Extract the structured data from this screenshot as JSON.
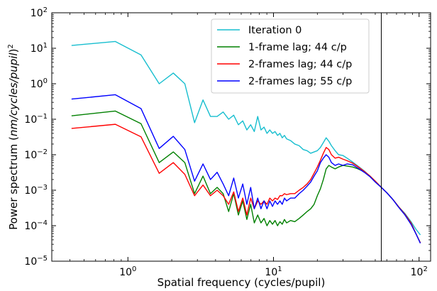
{
  "chart_data": {
    "type": "line",
    "xlabel": "Spatial frequency (cycles/pupil)",
    "ylabel_prefix": "Power spectrum (",
    "ylabel_italic": "nm/cycles/pupil",
    "ylabel_suffix": ")",
    "ylabel_exponent": "2",
    "x_scale": "log",
    "y_scale": "log",
    "xlim": [
      0.3,
      120
    ],
    "ylim": [
      1e-05,
      100
    ],
    "x_major_ticks": [
      {
        "value": 1,
        "base": "10",
        "exp": "0"
      },
      {
        "value": 10,
        "base": "10",
        "exp": "1"
      },
      {
        "value": 100,
        "base": "10",
        "exp": "2"
      }
    ],
    "y_major_ticks": [
      {
        "value": 1e-05,
        "base": "10",
        "exp": "−5"
      },
      {
        "value": 0.0001,
        "base": "10",
        "exp": "−4"
      },
      {
        "value": 0.001,
        "base": "10",
        "exp": "−3"
      },
      {
        "value": 0.01,
        "base": "10",
        "exp": "−2"
      },
      {
        "value": 0.1,
        "base": "10",
        "exp": "−1"
      },
      {
        "value": 1,
        "base": "10",
        "exp": "0"
      },
      {
        "value": 10,
        "base": "10",
        "exp": "1"
      },
      {
        "value": 100,
        "base": "10",
        "exp": "2"
      }
    ],
    "vertical_line_x": 55,
    "grid": false,
    "legend_position": "top-center",
    "series": [
      {
        "name": "Iteration 0",
        "color": "#17becf",
        "points": [
          [
            0.41,
            12
          ],
          [
            0.82,
            15.5
          ],
          [
            1.23,
            6.5
          ],
          [
            1.64,
            1.0
          ],
          [
            2.05,
            2.0
          ],
          [
            2.46,
            1.0
          ],
          [
            2.87,
            0.08
          ],
          [
            3.28,
            0.35
          ],
          [
            3.69,
            0.12
          ],
          [
            4.1,
            0.12
          ],
          [
            4.51,
            0.16
          ],
          [
            4.92,
            0.1
          ],
          [
            5.33,
            0.13
          ],
          [
            5.74,
            0.07
          ],
          [
            6.15,
            0.09
          ],
          [
            6.56,
            0.05
          ],
          [
            6.97,
            0.07
          ],
          [
            7.38,
            0.045
          ],
          [
            7.79,
            0.12
          ],
          [
            8.2,
            0.05
          ],
          [
            8.61,
            0.06
          ],
          [
            9.02,
            0.04
          ],
          [
            9.43,
            0.05
          ],
          [
            9.84,
            0.04
          ],
          [
            10.25,
            0.045
          ],
          [
            10.66,
            0.035
          ],
          [
            11.07,
            0.04
          ],
          [
            11.48,
            0.03
          ],
          [
            11.89,
            0.035
          ],
          [
            12.3,
            0.028
          ],
          [
            13.1,
            0.025
          ],
          [
            14.0,
            0.02
          ],
          [
            15.0,
            0.018
          ],
          [
            16.0,
            0.014
          ],
          [
            17.0,
            0.013
          ],
          [
            18.0,
            0.011
          ],
          [
            19.0,
            0.012
          ],
          [
            20.0,
            0.013
          ],
          [
            21.0,
            0.016
          ],
          [
            22.0,
            0.022
          ],
          [
            23.0,
            0.03
          ],
          [
            24.0,
            0.024
          ],
          [
            25.0,
            0.018
          ],
          [
            26.5,
            0.013
          ],
          [
            28.0,
            0.01
          ],
          [
            30.0,
            0.0095
          ],
          [
            32.0,
            0.008
          ],
          [
            35.0,
            0.0062
          ],
          [
            38.0,
            0.0048
          ],
          [
            42.0,
            0.0035
          ],
          [
            46.0,
            0.0025
          ],
          [
            50.0,
            0.0018
          ],
          [
            55.0,
            0.0012
          ],
          [
            60.0,
            0.00085
          ],
          [
            66.0,
            0.00055
          ],
          [
            72.0,
            0.00035
          ],
          [
            80.0,
            0.00022
          ],
          [
            88.0,
            0.00013
          ],
          [
            95.0,
            8e-05
          ],
          [
            102,
            5.5e-05
          ]
        ]
      },
      {
        "name": "1-frame lag; 44 c/p",
        "color": "#008000",
        "points": [
          [
            0.41,
            0.125
          ],
          [
            0.82,
            0.17
          ],
          [
            1.23,
            0.075
          ],
          [
            1.64,
            0.006
          ],
          [
            2.05,
            0.012
          ],
          [
            2.46,
            0.006
          ],
          [
            2.87,
            0.0008
          ],
          [
            3.28,
            0.0025
          ],
          [
            3.69,
            0.0008
          ],
          [
            4.1,
            0.0012
          ],
          [
            4.51,
            0.0008
          ],
          [
            4.92,
            0.00025
          ],
          [
            5.33,
            0.0008
          ],
          [
            5.74,
            0.0002
          ],
          [
            6.15,
            0.0005
          ],
          [
            6.56,
            0.00015
          ],
          [
            6.97,
            0.0004
          ],
          [
            7.38,
            0.00012
          ],
          [
            7.79,
            0.0002
          ],
          [
            8.2,
            0.00012
          ],
          [
            8.61,
            0.00016
          ],
          [
            9.02,
            0.0001
          ],
          [
            9.43,
            0.00014
          ],
          [
            9.84,
            0.00011
          ],
          [
            10.25,
            0.00014
          ],
          [
            10.66,
            0.0001
          ],
          [
            11.07,
            0.00013
          ],
          [
            11.48,
            0.00011
          ],
          [
            11.89,
            0.00015
          ],
          [
            12.3,
            0.00012
          ],
          [
            13.1,
            0.00014
          ],
          [
            14.0,
            0.00013
          ],
          [
            15.0,
            0.00016
          ],
          [
            16.0,
            0.0002
          ],
          [
            17.0,
            0.00025
          ],
          [
            18.0,
            0.0003
          ],
          [
            19.0,
            0.0004
          ],
          [
            20.0,
            0.0007
          ],
          [
            21.0,
            0.0011
          ],
          [
            22.0,
            0.002
          ],
          [
            23.0,
            0.004
          ],
          [
            24.0,
            0.005
          ],
          [
            25.0,
            0.0045
          ],
          [
            26.5,
            0.004
          ],
          [
            28.0,
            0.0045
          ],
          [
            30.0,
            0.005
          ],
          [
            32.0,
            0.0048
          ],
          [
            35.0,
            0.0045
          ],
          [
            38.0,
            0.004
          ],
          [
            42.0,
            0.0033
          ],
          [
            46.0,
            0.0025
          ],
          [
            50.0,
            0.0018
          ],
          [
            55.0,
            0.0012
          ],
          [
            60.0,
            0.00085
          ],
          [
            66.0,
            0.00055
          ],
          [
            72.0,
            0.00035
          ],
          [
            80.0,
            0.00021
          ],
          [
            88.0,
            0.00012
          ],
          [
            95.0,
            6e-05
          ],
          [
            102,
            3.3e-05
          ]
        ]
      },
      {
        "name": "2-frames lag; 44 c/p",
        "color": "#ff0000",
        "points": [
          [
            0.41,
            0.055
          ],
          [
            0.82,
            0.072
          ],
          [
            1.23,
            0.032
          ],
          [
            1.64,
            0.003
          ],
          [
            2.05,
            0.006
          ],
          [
            2.46,
            0.0028
          ],
          [
            2.87,
            0.0007
          ],
          [
            3.28,
            0.0014
          ],
          [
            3.69,
            0.0007
          ],
          [
            4.1,
            0.001
          ],
          [
            4.51,
            0.0007
          ],
          [
            4.92,
            0.0004
          ],
          [
            5.33,
            0.0009
          ],
          [
            5.74,
            0.00025
          ],
          [
            6.15,
            0.0006
          ],
          [
            6.56,
            0.0002
          ],
          [
            6.97,
            0.0006
          ],
          [
            7.38,
            0.0003
          ],
          [
            7.79,
            0.0005
          ],
          [
            8.2,
            0.0004
          ],
          [
            8.61,
            0.0005
          ],
          [
            9.02,
            0.0004
          ],
          [
            9.43,
            0.0006
          ],
          [
            9.84,
            0.0005
          ],
          [
            10.25,
            0.0006
          ],
          [
            10.66,
            0.00055
          ],
          [
            11.07,
            0.0007
          ],
          [
            11.48,
            0.0007
          ],
          [
            11.89,
            0.0008
          ],
          [
            12.3,
            0.00075
          ],
          [
            13.1,
            0.0008
          ],
          [
            14.0,
            0.0008
          ],
          [
            15.0,
            0.001
          ],
          [
            16.0,
            0.0012
          ],
          [
            17.0,
            0.0015
          ],
          [
            18.0,
            0.002
          ],
          [
            19.0,
            0.003
          ],
          [
            20.0,
            0.0045
          ],
          [
            21.0,
            0.007
          ],
          [
            22.0,
            0.011
          ],
          [
            23.0,
            0.016
          ],
          [
            24.0,
            0.014
          ],
          [
            25.0,
            0.01
          ],
          [
            26.5,
            0.008
          ],
          [
            28.0,
            0.0085
          ],
          [
            30.0,
            0.0075
          ],
          [
            32.0,
            0.0068
          ],
          [
            35.0,
            0.0058
          ],
          [
            38.0,
            0.0046
          ],
          [
            42.0,
            0.0034
          ],
          [
            46.0,
            0.0025
          ],
          [
            50.0,
            0.0018
          ],
          [
            55.0,
            0.0012
          ],
          [
            60.0,
            0.00085
          ],
          [
            66.0,
            0.00055
          ],
          [
            72.0,
            0.00035
          ],
          [
            80.0,
            0.00021
          ],
          [
            88.0,
            0.00012
          ],
          [
            95.0,
            6e-05
          ],
          [
            102,
            3.3e-05
          ]
        ]
      },
      {
        "name": "2-frames lag; 55 c/p",
        "color": "#0000ff",
        "points": [
          [
            0.41,
            0.37
          ],
          [
            0.82,
            0.49
          ],
          [
            1.23,
            0.2
          ],
          [
            1.64,
            0.015
          ],
          [
            2.05,
            0.033
          ],
          [
            2.46,
            0.014
          ],
          [
            2.87,
            0.0018
          ],
          [
            3.28,
            0.0055
          ],
          [
            3.69,
            0.002
          ],
          [
            4.1,
            0.0032
          ],
          [
            4.51,
            0.0015
          ],
          [
            4.92,
            0.0007
          ],
          [
            5.33,
            0.0022
          ],
          [
            5.74,
            0.0006
          ],
          [
            6.15,
            0.0015
          ],
          [
            6.56,
            0.0004
          ],
          [
            6.97,
            0.0012
          ],
          [
            7.38,
            0.0003
          ],
          [
            7.79,
            0.0006
          ],
          [
            8.2,
            0.0003
          ],
          [
            8.61,
            0.0005
          ],
          [
            9.02,
            0.0003
          ],
          [
            9.43,
            0.0005
          ],
          [
            9.84,
            0.00035
          ],
          [
            10.25,
            0.0005
          ],
          [
            10.66,
            0.0004
          ],
          [
            11.07,
            0.0005
          ],
          [
            11.48,
            0.0004
          ],
          [
            11.89,
            0.0006
          ],
          [
            12.3,
            0.0005
          ],
          [
            13.1,
            0.0006
          ],
          [
            14.0,
            0.0006
          ],
          [
            15.0,
            0.0008
          ],
          [
            16.0,
            0.001
          ],
          [
            17.0,
            0.0013
          ],
          [
            18.0,
            0.0017
          ],
          [
            19.0,
            0.0025
          ],
          [
            20.0,
            0.0035
          ],
          [
            21.0,
            0.006
          ],
          [
            22.0,
            0.008
          ],
          [
            23.0,
            0.01
          ],
          [
            24.0,
            0.0085
          ],
          [
            25.0,
            0.006
          ],
          [
            26.5,
            0.005
          ],
          [
            28.0,
            0.0055
          ],
          [
            30.0,
            0.005
          ],
          [
            32.0,
            0.0055
          ],
          [
            35.0,
            0.0052
          ],
          [
            38.0,
            0.0042
          ],
          [
            42.0,
            0.0032
          ],
          [
            46.0,
            0.0024
          ],
          [
            50.0,
            0.0017
          ],
          [
            55.0,
            0.0012
          ],
          [
            60.0,
            0.00085
          ],
          [
            66.0,
            0.00055
          ],
          [
            72.0,
            0.00034
          ],
          [
            80.0,
            0.0002
          ],
          [
            88.0,
            0.00011
          ],
          [
            95.0,
            6e-05
          ],
          [
            102,
            3.2e-05
          ]
        ]
      }
    ]
  }
}
